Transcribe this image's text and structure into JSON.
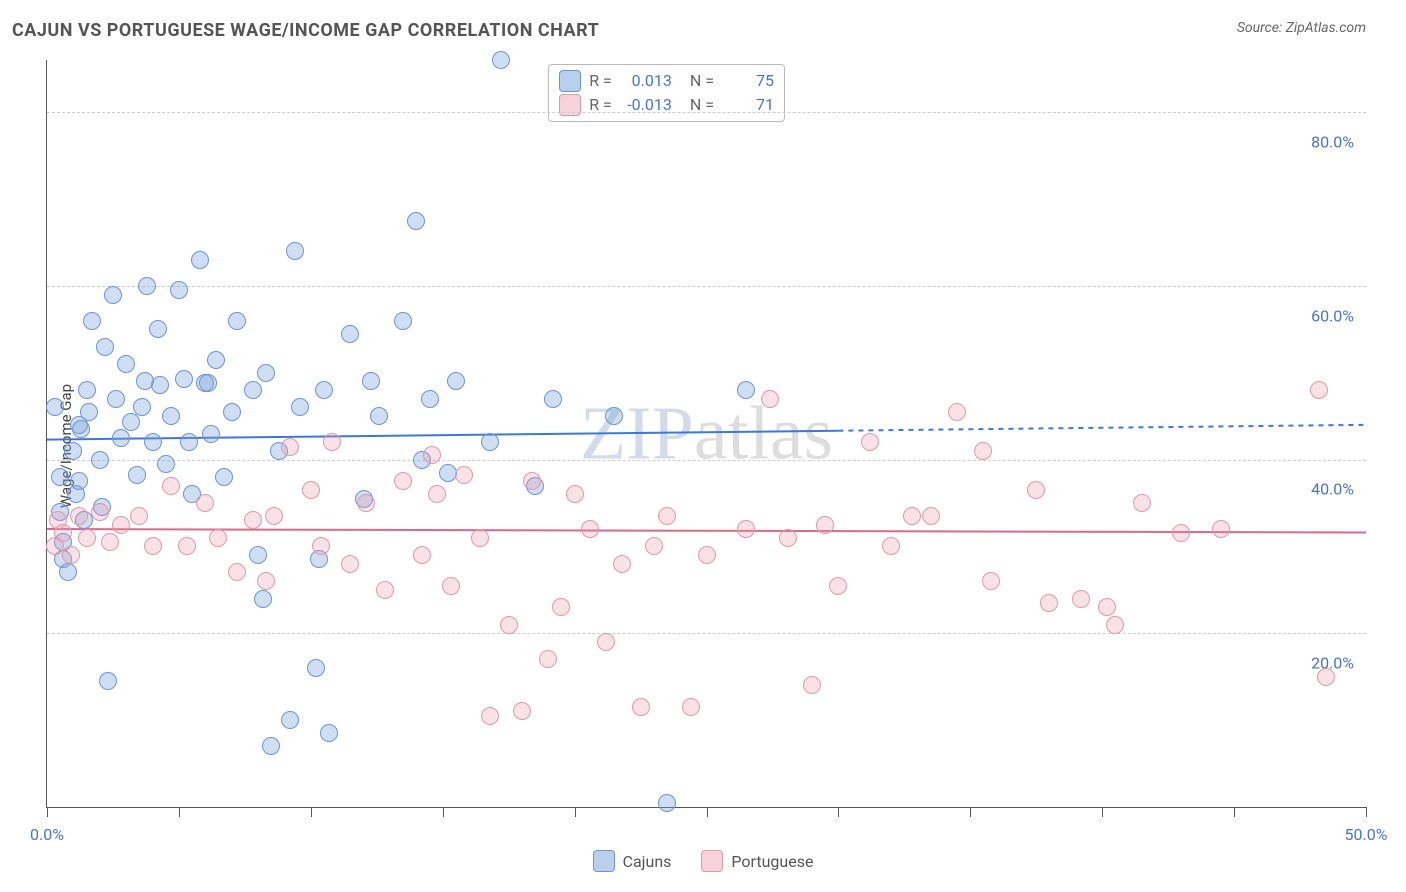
{
  "title": "CAJUN VS PORTUGUESE WAGE/INCOME GAP CORRELATION CHART",
  "source_label": "Source: ",
  "source_value": "ZipAtlas.com",
  "y_axis_label": "Wage/Income Gap",
  "watermark_a": "ZIP",
  "watermark_b": "atlas",
  "chart": {
    "type": "scatter",
    "xlim": [
      0,
      50
    ],
    "ylim": [
      0,
      86
    ],
    "x_ticks": [
      0,
      5,
      10,
      15,
      20,
      25,
      30,
      35,
      40,
      45,
      50
    ],
    "x_tick_labels": {
      "0": "0.0%",
      "50": "50.0%"
    },
    "y_grid": [
      20,
      40,
      60,
      80
    ],
    "y_tick_labels": {
      "20": "20.0%",
      "40": "40.0%",
      "60": "60.0%",
      "80": "80.0%"
    },
    "grid_color": "#cccccc",
    "background_color": "#ffffff",
    "axis_color": "#555555",
    "tick_label_color": "#4a74c9",
    "marker_radius": 9,
    "marker_stroke_width": 1.2,
    "series": [
      {
        "name": "Cajuns",
        "fill": "rgba(120,160,220,0.35)",
        "stroke": "#6a96d6",
        "stroke_hex": "#6a96d6",
        "fill_hex": "#a9c5ea",
        "trend": {
          "y_start": 42.3,
          "y_end": 44.0,
          "solid_until_x": 30,
          "color": "#3c78d8",
          "width": 2,
          "dash": "5,5"
        },
        "points": [
          [
            0.3,
            46
          ],
          [
            0.5,
            38
          ],
          [
            0.5,
            34
          ],
          [
            0.6,
            28.5
          ],
          [
            0.6,
            30.5
          ],
          [
            0.8,
            27
          ],
          [
            1.0,
            41
          ],
          [
            1.1,
            36
          ],
          [
            1.2,
            44
          ],
          [
            1.2,
            37.5
          ],
          [
            1.3,
            43.5
          ],
          [
            1.4,
            33
          ],
          [
            1.5,
            48
          ],
          [
            1.6,
            45.5
          ],
          [
            1.7,
            56
          ],
          [
            2.0,
            40
          ],
          [
            2.1,
            34.5
          ],
          [
            2.2,
            53
          ],
          [
            2.3,
            14.5
          ],
          [
            2.5,
            59
          ],
          [
            2.6,
            47
          ],
          [
            2.8,
            42.5
          ],
          [
            3.0,
            51
          ],
          [
            3.2,
            44.3
          ],
          [
            3.4,
            38.2
          ],
          [
            3.6,
            46
          ],
          [
            3.7,
            49
          ],
          [
            3.8,
            60
          ],
          [
            4.0,
            42
          ],
          [
            4.2,
            55
          ],
          [
            4.3,
            48.6
          ],
          [
            4.5,
            39.5
          ],
          [
            4.7,
            45
          ],
          [
            5.0,
            59.5
          ],
          [
            5.2,
            49.3
          ],
          [
            5.4,
            42
          ],
          [
            5.5,
            36
          ],
          [
            5.8,
            63
          ],
          [
            6.0,
            48.8
          ],
          [
            6.1,
            48.8
          ],
          [
            6.2,
            43
          ],
          [
            6.4,
            51.5
          ],
          [
            6.7,
            38
          ],
          [
            7.0,
            45.5
          ],
          [
            7.2,
            56
          ],
          [
            7.8,
            48
          ],
          [
            8.0,
            29
          ],
          [
            8.2,
            24
          ],
          [
            8.3,
            50
          ],
          [
            8.5,
            7
          ],
          [
            8.8,
            41
          ],
          [
            9.2,
            10
          ],
          [
            9.4,
            64
          ],
          [
            9.6,
            46
          ],
          [
            10.2,
            16
          ],
          [
            10.3,
            28.5
          ],
          [
            10.5,
            48
          ],
          [
            10.7,
            8.5
          ],
          [
            11.5,
            54.5
          ],
          [
            12.0,
            35.5
          ],
          [
            12.3,
            49
          ],
          [
            12.6,
            45
          ],
          [
            13.5,
            56
          ],
          [
            14.0,
            67.5
          ],
          [
            14.2,
            40
          ],
          [
            14.5,
            47
          ],
          [
            15.2,
            38.5
          ],
          [
            15.5,
            49
          ],
          [
            16.8,
            42
          ],
          [
            17.2,
            86
          ],
          [
            18.5,
            37
          ],
          [
            19.2,
            47
          ],
          [
            21.5,
            45
          ],
          [
            23.5,
            0.5
          ],
          [
            26.5,
            48
          ]
        ]
      },
      {
        "name": "Portuguese",
        "fill": "rgba(235,150,170,0.28)",
        "stroke": "#e398aa",
        "stroke_hex": "#e398aa",
        "fill_hex": "#f3c9d3",
        "trend": {
          "y_start": 32.0,
          "y_end": 31.6,
          "solid_until_x": 50,
          "color": "#d86a8a",
          "width": 2,
          "dash": ""
        },
        "points": [
          [
            0.3,
            30
          ],
          [
            0.4,
            33
          ],
          [
            0.6,
            31.5
          ],
          [
            0.9,
            29
          ],
          [
            1.2,
            33.5
          ],
          [
            1.5,
            31
          ],
          [
            2.0,
            34
          ],
          [
            2.4,
            30.5
          ],
          [
            2.8,
            32.5
          ],
          [
            3.5,
            33.5
          ],
          [
            4.0,
            30
          ],
          [
            4.7,
            37
          ],
          [
            5.3,
            30
          ],
          [
            6.0,
            35
          ],
          [
            6.5,
            31
          ],
          [
            7.2,
            27
          ],
          [
            7.8,
            33
          ],
          [
            8.3,
            26
          ],
          [
            8.6,
            33.5
          ],
          [
            9.2,
            41.5
          ],
          [
            10.0,
            36.5
          ],
          [
            10.4,
            30
          ],
          [
            10.8,
            42
          ],
          [
            11.5,
            28
          ],
          [
            12.1,
            35
          ],
          [
            12.8,
            25
          ],
          [
            13.5,
            37.5
          ],
          [
            14.2,
            29
          ],
          [
            14.6,
            40.5
          ],
          [
            14.8,
            36
          ],
          [
            15.3,
            25.5
          ],
          [
            15.8,
            38.2
          ],
          [
            16.4,
            31
          ],
          [
            16.8,
            10.5
          ],
          [
            17.5,
            21
          ],
          [
            18.0,
            11
          ],
          [
            18.4,
            37.5
          ],
          [
            19.0,
            17
          ],
          [
            19.5,
            23
          ],
          [
            20.0,
            36
          ],
          [
            20.6,
            32
          ],
          [
            21.2,
            19
          ],
          [
            21.8,
            28
          ],
          [
            22.5,
            11.5
          ],
          [
            23.0,
            30
          ],
          [
            23.5,
            33.5
          ],
          [
            24.4,
            11.5
          ],
          [
            25.0,
            29
          ],
          [
            26.5,
            32
          ],
          [
            27.4,
            47
          ],
          [
            28.1,
            31
          ],
          [
            29.0,
            14
          ],
          [
            29.5,
            32.5
          ],
          [
            30.0,
            25.5
          ],
          [
            31.2,
            42
          ],
          [
            32.0,
            30
          ],
          [
            32.8,
            33.5
          ],
          [
            33.5,
            33.5
          ],
          [
            34.5,
            45.5
          ],
          [
            35.5,
            41
          ],
          [
            35.8,
            26
          ],
          [
            37.5,
            36.5
          ],
          [
            38.0,
            23.5
          ],
          [
            39.2,
            24
          ],
          [
            40.2,
            23
          ],
          [
            40.5,
            21
          ],
          [
            41.5,
            35
          ],
          [
            43.0,
            31.5
          ],
          [
            44.5,
            32
          ],
          [
            48.2,
            48
          ],
          [
            48.5,
            15
          ]
        ]
      }
    ]
  },
  "legend_top": {
    "r_label": "R  =",
    "n_label": "N  =",
    "rows": [
      {
        "swatch_fill": "#b8d0ee",
        "swatch_stroke": "#6a96d6",
        "r": "0.013",
        "n": "75"
      },
      {
        "swatch_fill": "#f6d3dc",
        "swatch_stroke": "#e398aa",
        "r": "-0.013",
        "n": "71"
      }
    ]
  },
  "legend_bottom": [
    {
      "swatch_fill": "#b8d0ee",
      "swatch_stroke": "#6a96d6",
      "label": "Cajuns"
    },
    {
      "swatch_fill": "#f6d3dc",
      "swatch_stroke": "#e398aa",
      "label": "Portuguese"
    }
  ]
}
